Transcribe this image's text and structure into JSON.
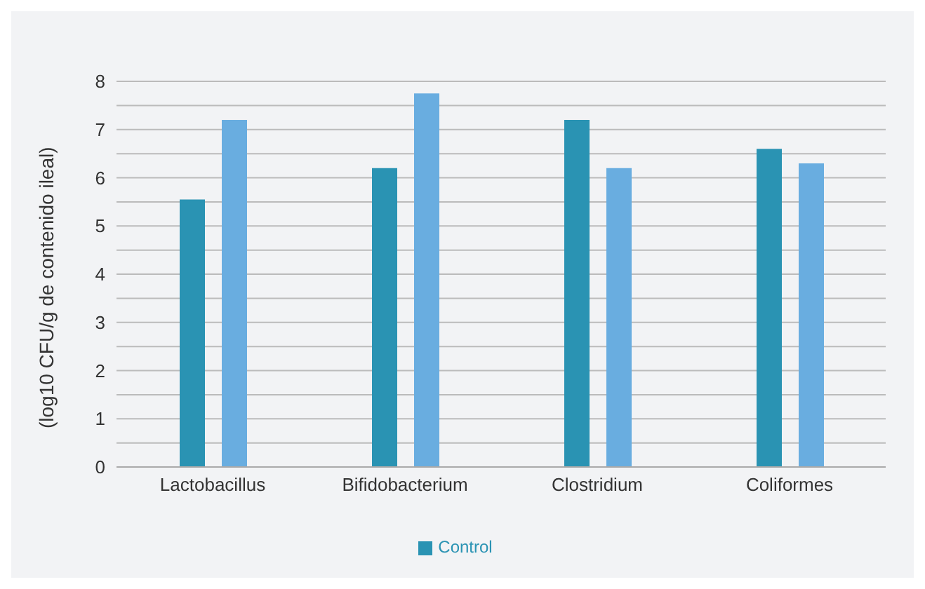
{
  "chart_data": {
    "type": "bar",
    "ylabel": "(log10 CFU/g de contenido ileal)",
    "categories": [
      "Lactobacillus",
      "Bifidobacterium",
      "Clostridium",
      "Coliformes"
    ],
    "series": [
      {
        "name": "Control",
        "color": "#2a93b3",
        "values": [
          5.55,
          6.2,
          7.2,
          6.6
        ]
      },
      {
        "color": "#69ade0",
        "values": [
          7.2,
          7.75,
          6.2,
          6.3
        ]
      }
    ],
    "ylim": [
      0,
      8
    ],
    "yticks": [
      0,
      {
        "value": 0.5,
        "label": null
      },
      1,
      {
        "value": 1.5,
        "label": null
      },
      2,
      {
        "value": 2.5,
        "label": null
      },
      3,
      {
        "value": 3.5,
        "label": null
      },
      4,
      {
        "value": 4.5,
        "label": null
      },
      5,
      {
        "value": 5.5,
        "label": null
      },
      6,
      {
        "value": 6.5,
        "label": null
      },
      7,
      {
        "value": 7.5,
        "label": null
      },
      8
    ],
    "grid": "y",
    "legend": "bottom"
  }
}
